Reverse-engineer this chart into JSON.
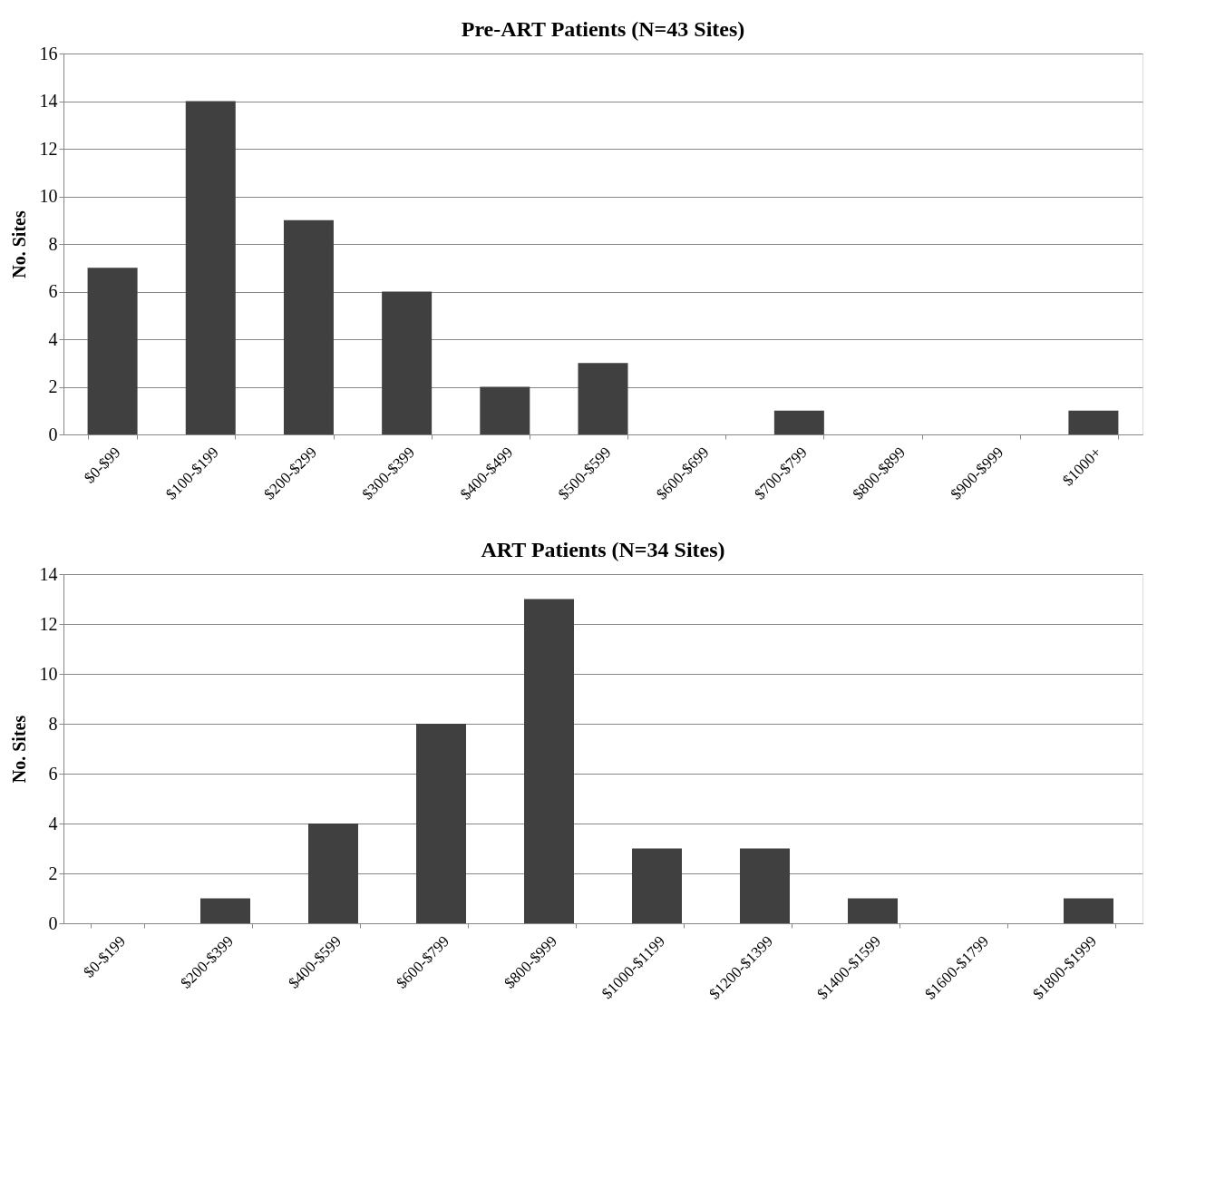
{
  "chart_data": [
    {
      "type": "bar",
      "title": "Pre-ART Patients (N=43 Sites)",
      "ylabel": "No. Sites",
      "categories": [
        "$0-$99",
        "$100-$199",
        "$200-$299",
        "$300-$399",
        "$400-$499",
        "$500-$599",
        "$600-$699",
        "$700-$799",
        "$800-$899",
        "$900-$999",
        "$1000+"
      ],
      "values": [
        7,
        14,
        9,
        6,
        2,
        3,
        0,
        1,
        0,
        0,
        1
      ],
      "color": "#404040",
      "ylim": [
        0,
        16
      ],
      "yticks": [
        0,
        2,
        4,
        6,
        8,
        10,
        12,
        14,
        16
      ],
      "grid": "y"
    },
    {
      "type": "bar",
      "title": "ART Patients (N=34 Sites)",
      "ylabel": "No. Sites",
      "categories": [
        "$0-$199",
        "$200-$399",
        "$400-$599",
        "$600-$799",
        "$800-$999",
        "$1000-$1199",
        "$1200-$1399",
        "$1400-$1599",
        "$1600-$1799",
        "$1800-$1999"
      ],
      "values": [
        0,
        1,
        4,
        8,
        13,
        3,
        3,
        1,
        0,
        1
      ],
      "color": "#404040",
      "ylim": [
        0,
        14
      ],
      "yticks": [
        0,
        2,
        4,
        6,
        8,
        10,
        12,
        14
      ],
      "grid": "y"
    }
  ]
}
